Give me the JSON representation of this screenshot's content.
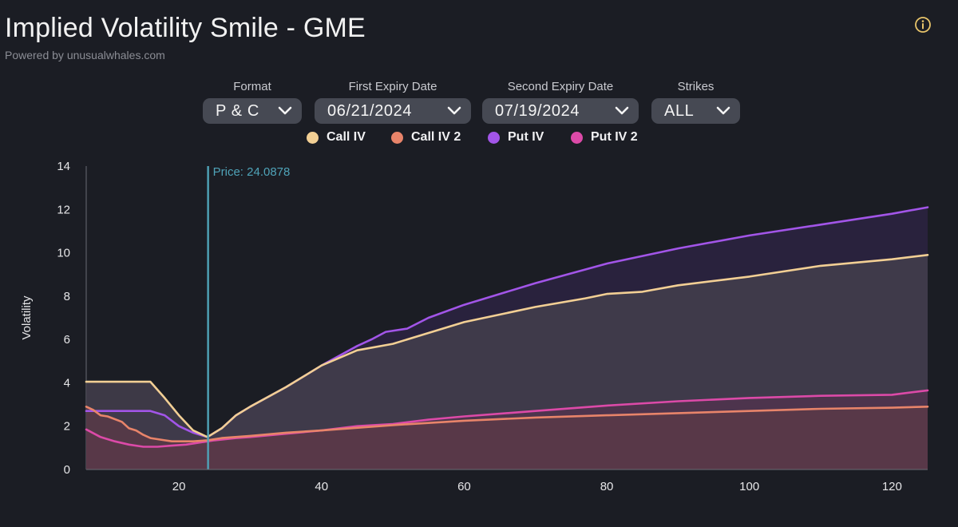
{
  "header": {
    "title": "Implied Volatility Smile - GME",
    "subtitle": "Powered by unusualwhales.com",
    "info_icon": "info-icon"
  },
  "controls": {
    "format": {
      "label": "Format",
      "value": "P & C"
    },
    "first_expiry": {
      "label": "First Expiry Date",
      "value": "06/21/2024"
    },
    "second_expiry": {
      "label": "Second Expiry Date",
      "value": "07/19/2024"
    },
    "strikes": {
      "label": "Strikes",
      "value": "ALL"
    }
  },
  "colors": {
    "background": "#1b1d24",
    "call_iv": "#f2cf94",
    "call_iv_2": "#e8846a",
    "put_iv": "#a255e8",
    "put_iv_2": "#dc4aa8",
    "price_line": "#4fa3b8"
  },
  "chart_data": {
    "type": "area",
    "ylabel": "Volatility",
    "xlabel": "",
    "xlim": [
      7,
      125
    ],
    "ylim": [
      0,
      14
    ],
    "x_ticks": [
      20,
      40,
      60,
      80,
      100,
      120
    ],
    "y_ticks": [
      0,
      2,
      4,
      6,
      8,
      10,
      12,
      14
    ],
    "price_marker": {
      "label": "Price: 24.0878",
      "x": 24.0878
    },
    "legend_position": "top-center",
    "series": [
      {
        "name": "Call IV",
        "x": [
          7,
          10,
          13,
          16,
          18,
          20,
          22,
          24,
          26,
          28,
          30,
          35,
          40,
          45,
          50,
          60,
          70,
          77,
          80,
          85,
          90,
          100,
          110,
          120,
          125
        ],
        "y": [
          4.05,
          4.05,
          4.05,
          4.05,
          3.3,
          2.5,
          1.8,
          1.5,
          1.9,
          2.5,
          2.9,
          3.8,
          4.8,
          5.5,
          5.8,
          6.8,
          7.5,
          7.9,
          8.1,
          8.2,
          8.5,
          8.9,
          9.4,
          9.7,
          9.9
        ]
      },
      {
        "name": "Call IV 2",
        "x": [
          7,
          8,
          9,
          10,
          12,
          13,
          14,
          15,
          16,
          17,
          18,
          19,
          20,
          22,
          24,
          26,
          30,
          35,
          40,
          50,
          60,
          70,
          80,
          90,
          100,
          110,
          120,
          125
        ],
        "y": [
          2.9,
          2.75,
          2.5,
          2.45,
          2.2,
          1.9,
          1.8,
          1.6,
          1.45,
          1.4,
          1.35,
          1.3,
          1.3,
          1.3,
          1.35,
          1.45,
          1.55,
          1.7,
          1.8,
          2.05,
          2.25,
          2.4,
          2.5,
          2.6,
          2.7,
          2.8,
          2.85,
          2.9
        ]
      },
      {
        "name": "Put IV",
        "x": [
          7,
          10,
          13,
          16,
          18,
          20,
          22,
          24,
          26,
          28,
          30,
          35,
          40,
          45,
          47,
          49,
          52,
          55,
          60,
          70,
          80,
          90,
          100,
          110,
          120,
          125
        ],
        "y": [
          2.7,
          2.7,
          2.7,
          2.7,
          2.5,
          2.0,
          1.7,
          1.5,
          1.9,
          2.5,
          2.9,
          3.8,
          4.8,
          5.7,
          6.0,
          6.35,
          6.5,
          7.0,
          7.6,
          8.6,
          9.5,
          10.2,
          10.8,
          11.3,
          11.8,
          12.1
        ]
      },
      {
        "name": "Put IV 2",
        "x": [
          7,
          9,
          11,
          13,
          15,
          17,
          19,
          21,
          23,
          25,
          28,
          30,
          35,
          40,
          45,
          50,
          55,
          60,
          70,
          80,
          90,
          100,
          110,
          120,
          125
        ],
        "y": [
          1.85,
          1.5,
          1.3,
          1.15,
          1.05,
          1.05,
          1.1,
          1.15,
          1.25,
          1.35,
          1.45,
          1.5,
          1.65,
          1.8,
          2.0,
          2.1,
          2.3,
          2.45,
          2.7,
          2.95,
          3.15,
          3.3,
          3.4,
          3.45,
          3.65
        ]
      }
    ]
  }
}
